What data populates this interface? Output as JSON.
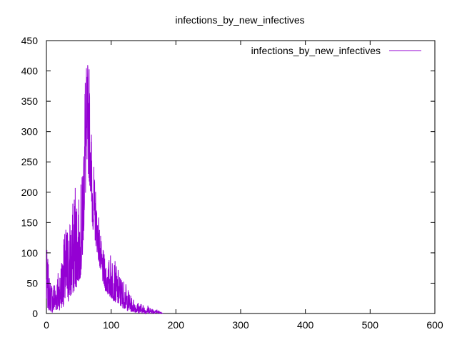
{
  "chart_data": {
    "type": "line",
    "title": "infections_by_new_infectives",
    "xlabel": "",
    "ylabel": "",
    "xlim": [
      0,
      600
    ],
    "ylim": [
      0,
      450
    ],
    "x_ticks": [
      0,
      100,
      200,
      300,
      400,
      500,
      600
    ],
    "y_ticks": [
      0,
      50,
      100,
      150,
      200,
      250,
      300,
      350,
      400,
      450
    ],
    "x_tick_labels": [
      "0",
      "100",
      "200",
      "300",
      "400",
      "500",
      "600"
    ],
    "y_tick_labels": [
      "0",
      "50",
      "100",
      "150",
      "200",
      "250",
      "300",
      "350",
      "400",
      "450"
    ],
    "grid": false,
    "legend_position": "top-right",
    "series": [
      {
        "name": "infections_by_new_infectives",
        "color": "#9400d3",
        "envelope": {
          "x": [
            0,
            5,
            10,
            15,
            20,
            25,
            30,
            35,
            40,
            45,
            50,
            55,
            58,
            60,
            62,
            65,
            68,
            70,
            75,
            80,
            85,
            90,
            95,
            100,
            105,
            110,
            115,
            120,
            125,
            130,
            135,
            140,
            145,
            150,
            155,
            160,
            165,
            170,
            175,
            180
          ],
          "high": [
            115,
            60,
            55,
            65,
            80,
            110,
            150,
            160,
            175,
            245,
            190,
            230,
            360,
            435,
            405,
            435,
            380,
            290,
            220,
            175,
            115,
            95,
            85,
            105,
            90,
            75,
            65,
            55,
            45,
            30,
            25,
            20,
            18,
            15,
            15,
            12,
            10,
            8,
            4,
            0
          ],
          "low": [
            10,
            5,
            0,
            5,
            5,
            10,
            15,
            20,
            30,
            40,
            50,
            70,
            140,
            180,
            220,
            230,
            200,
            150,
            120,
            90,
            60,
            40,
            30,
            25,
            20,
            15,
            10,
            8,
            5,
            3,
            2,
            1,
            0,
            0,
            0,
            0,
            0,
            0,
            0,
            0
          ]
        }
      }
    ]
  }
}
